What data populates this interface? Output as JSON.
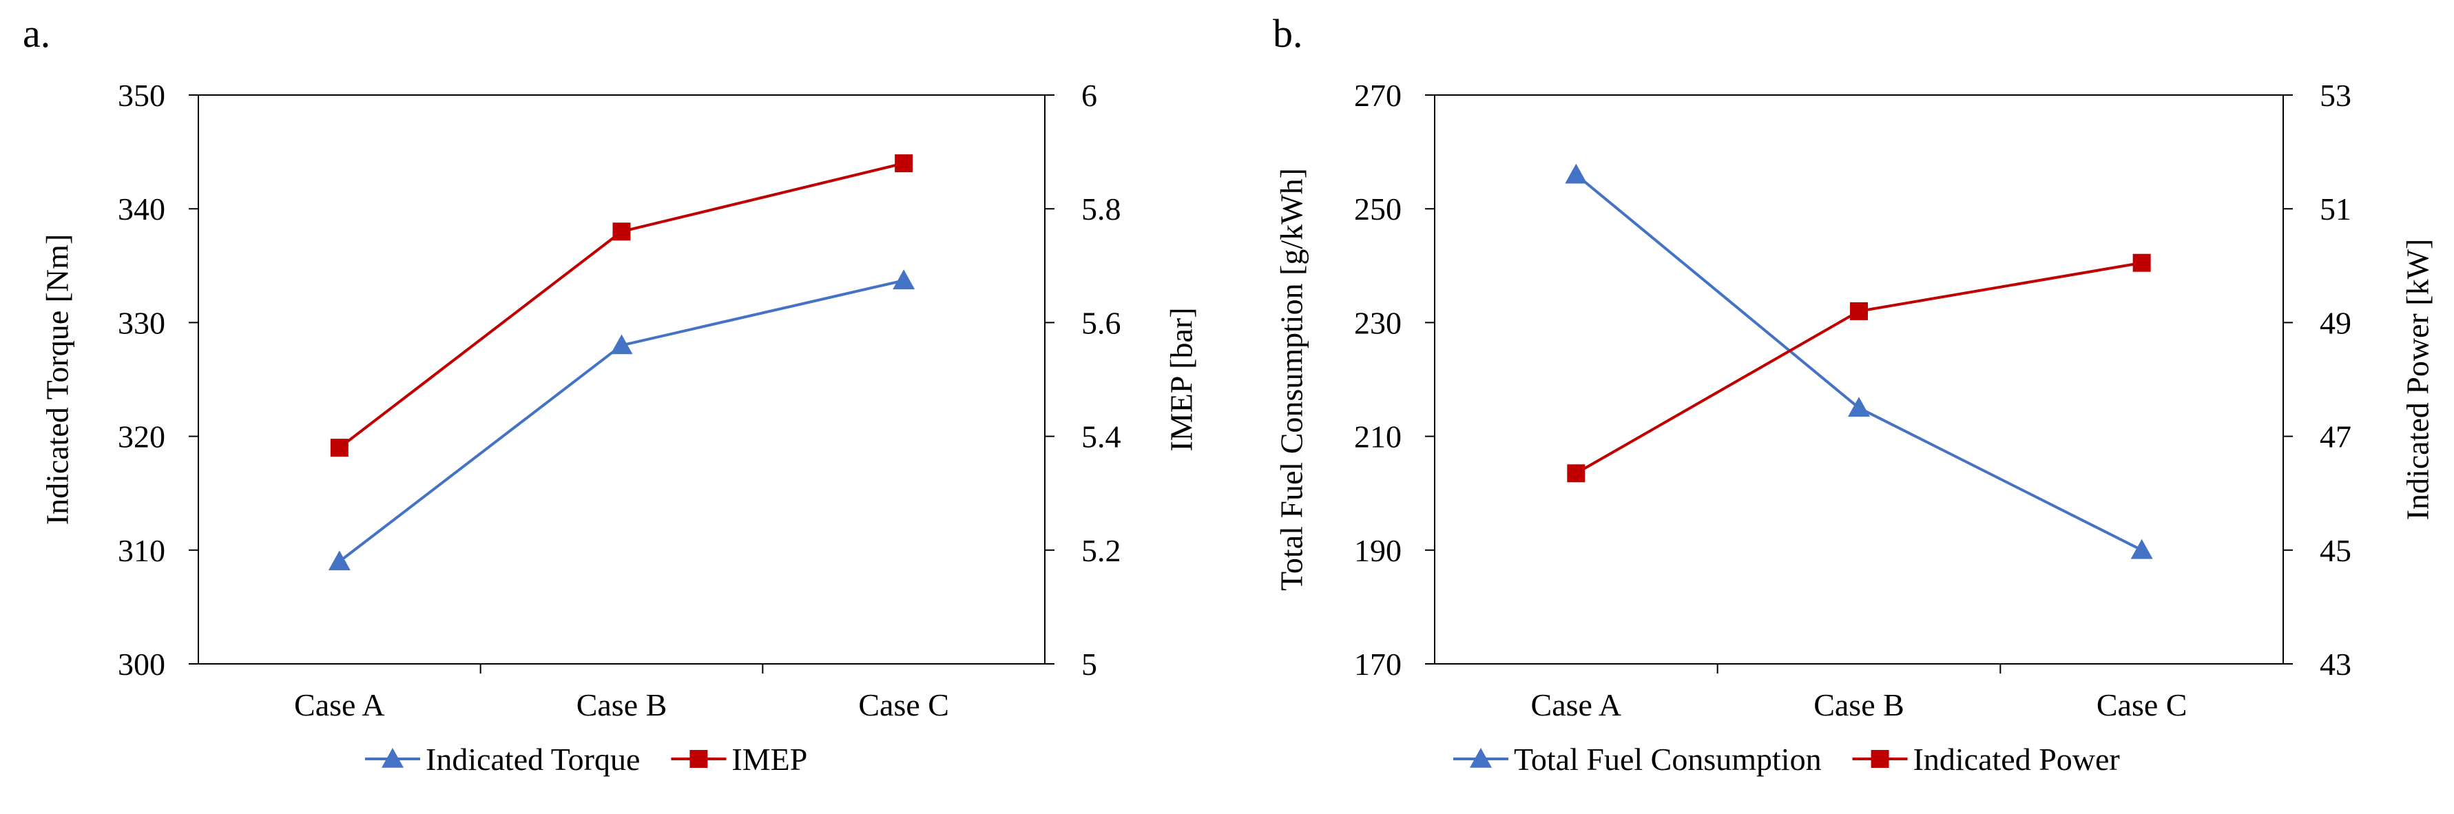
{
  "chart_data": [
    {
      "type": "line",
      "panel_label": "a.",
      "categories": [
        "Case A",
        "Case B",
        "Case C"
      ],
      "ylabel": "Indicated Torque [Nm]",
      "ylim": [
        300,
        350
      ],
      "yticks": [
        300,
        310,
        320,
        330,
        340,
        350
      ],
      "y2label": "IMEP [bar]",
      "y2lim": [
        5,
        6
      ],
      "y2ticks": [
        "5",
        "5.2",
        "5.4",
        "5.6",
        "5.8",
        "6"
      ],
      "grid": false,
      "legend_position": "bottom",
      "series": [
        {
          "name": "Indicated Torque",
          "axis": "left",
          "marker": "triangle",
          "color": "#4472C4",
          "values": [
            309,
            328,
            333.7
          ]
        },
        {
          "name": "IMEP",
          "axis": "right",
          "marker": "square",
          "color": "#C00000",
          "values": [
            5.38,
            5.76,
            5.88
          ]
        }
      ]
    },
    {
      "type": "line",
      "panel_label": "b.",
      "categories": [
        "Case A",
        "Case B",
        "Case C"
      ],
      "ylabel": "Total Fuel Consumption [g/kWh]",
      "ylim": [
        170,
        270
      ],
      "yticks": [
        170,
        190,
        210,
        230,
        250,
        270
      ],
      "y2label": "Indicated Power [kW]",
      "y2lim": [
        43,
        53
      ],
      "y2ticks": [
        "43",
        "45",
        "47",
        "49",
        "51",
        "53"
      ],
      "grid": false,
      "legend_position": "bottom",
      "series": [
        {
          "name": "Total Fuel Consumption",
          "axis": "left",
          "marker": "triangle",
          "color": "#4472C4",
          "values": [
            256,
            215,
            190
          ]
        },
        {
          "name": "Indicated Power",
          "axis": "right",
          "marker": "square",
          "color": "#C00000",
          "values": [
            46.35,
            49.2,
            50.05
          ]
        }
      ]
    }
  ]
}
